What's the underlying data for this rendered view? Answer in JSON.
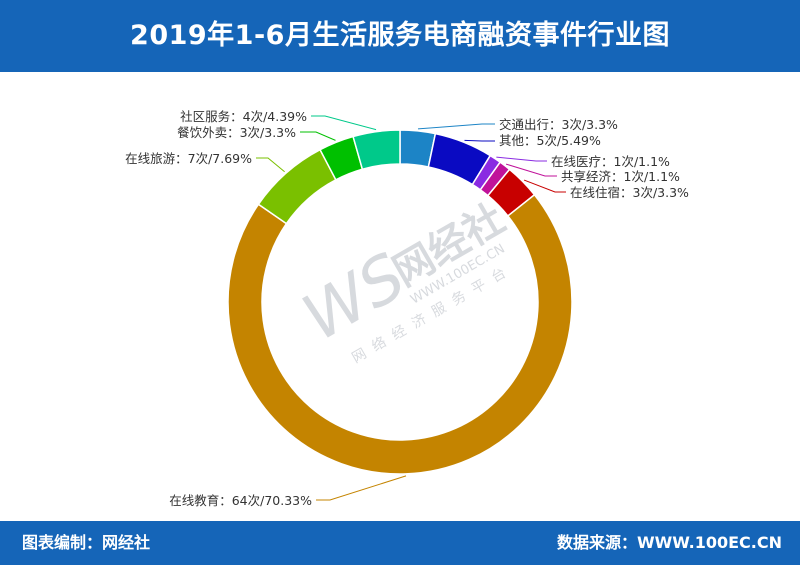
{
  "title": "2019年1-6月生活服务电商融资事件行业图",
  "footer": {
    "left": "图表编制：网经社",
    "right": "数据来源：WWW.100EC.CN"
  },
  "watermark": {
    "logo": "WS",
    "brand": "网经社",
    "url": "WWW.100EC.CN",
    "slogan": "网络经济服务平台"
  },
  "chart_data": {
    "type": "pie",
    "style": "donut",
    "slices": [
      {
        "name": "交通出行",
        "count": 3,
        "percent": 3.3,
        "label": "交通出行：3次/3.3%",
        "color": "#1c84c6"
      },
      {
        "name": "其他",
        "count": 5,
        "percent": 5.49,
        "label": "其他：5次/5.49%",
        "color": "#0a0ac2"
      },
      {
        "name": "在线医疗",
        "count": 1,
        "percent": 1.1,
        "label": "在线医疗：1次/1.1%",
        "color": "#8a2be2"
      },
      {
        "name": "共享经济",
        "count": 1,
        "percent": 1.1,
        "label": "共享经济：1次/1.1%",
        "color": "#c0129a"
      },
      {
        "name": "在线住宿",
        "count": 3,
        "percent": 3.3,
        "label": "在线住宿：3次/3.3%",
        "color": "#c80000"
      },
      {
        "name": "在线教育",
        "count": 64,
        "percent": 70.33,
        "label": "在线教育：64次/70.33%",
        "color": "#c48400"
      },
      {
        "name": "在线旅游",
        "count": 7,
        "percent": 7.69,
        "label": "在线旅游：7次/7.69%",
        "color": "#7ac000"
      },
      {
        "name": "餐饮外卖",
        "count": 3,
        "percent": 3.3,
        "label": "餐饮外卖：3次/3.3%",
        "color": "#00c000"
      },
      {
        "name": "社区服务",
        "count": 4,
        "percent": 4.39,
        "label": "社区服务：4次/4.39%",
        "color": "#00c98a"
      }
    ]
  }
}
